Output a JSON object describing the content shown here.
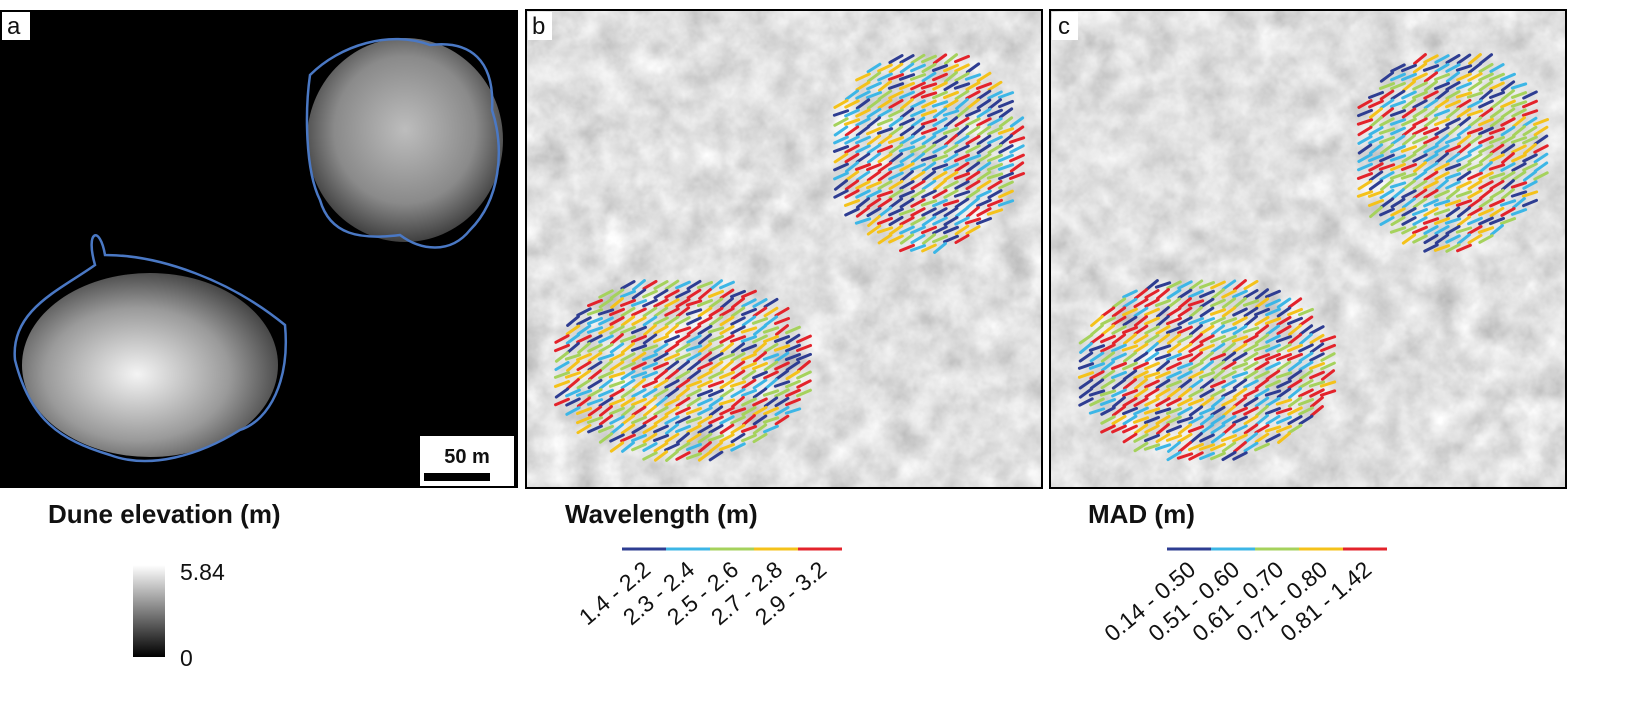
{
  "panels": [
    {
      "label": "a",
      "scale_bar": "50 m"
    },
    {
      "label": "b"
    },
    {
      "label": "c"
    }
  ],
  "legends": {
    "elevation": {
      "title": "Dune elevation (m)",
      "max": "5.84",
      "min": "0"
    },
    "wavelength": {
      "title": "Wavelength (m)",
      "classes": [
        {
          "label": "1.4 - 2.2",
          "color": "#2e3d92"
        },
        {
          "label": "2.3 - 2.4",
          "color": "#3cb6e6"
        },
        {
          "label": "2.5 - 2.6",
          "color": "#a5d25c"
        },
        {
          "label": "2.7 - 2.8",
          "color": "#f4c21a"
        },
        {
          "label": "2.9 - 3.2",
          "color": "#e3232b"
        }
      ]
    },
    "mad": {
      "title": "MAD (m)",
      "classes": [
        {
          "label": "0.14 - 0.50",
          "color": "#2e3d92"
        },
        {
          "label": "0.51 - 0.60",
          "color": "#3cb6e6"
        },
        {
          "label": "0.61 - 0.70",
          "color": "#a5d25c"
        },
        {
          "label": "0.71 - 0.80",
          "color": "#f4c21a"
        },
        {
          "label": "0.81 - 1.42",
          "color": "#e3232b"
        }
      ]
    }
  }
}
